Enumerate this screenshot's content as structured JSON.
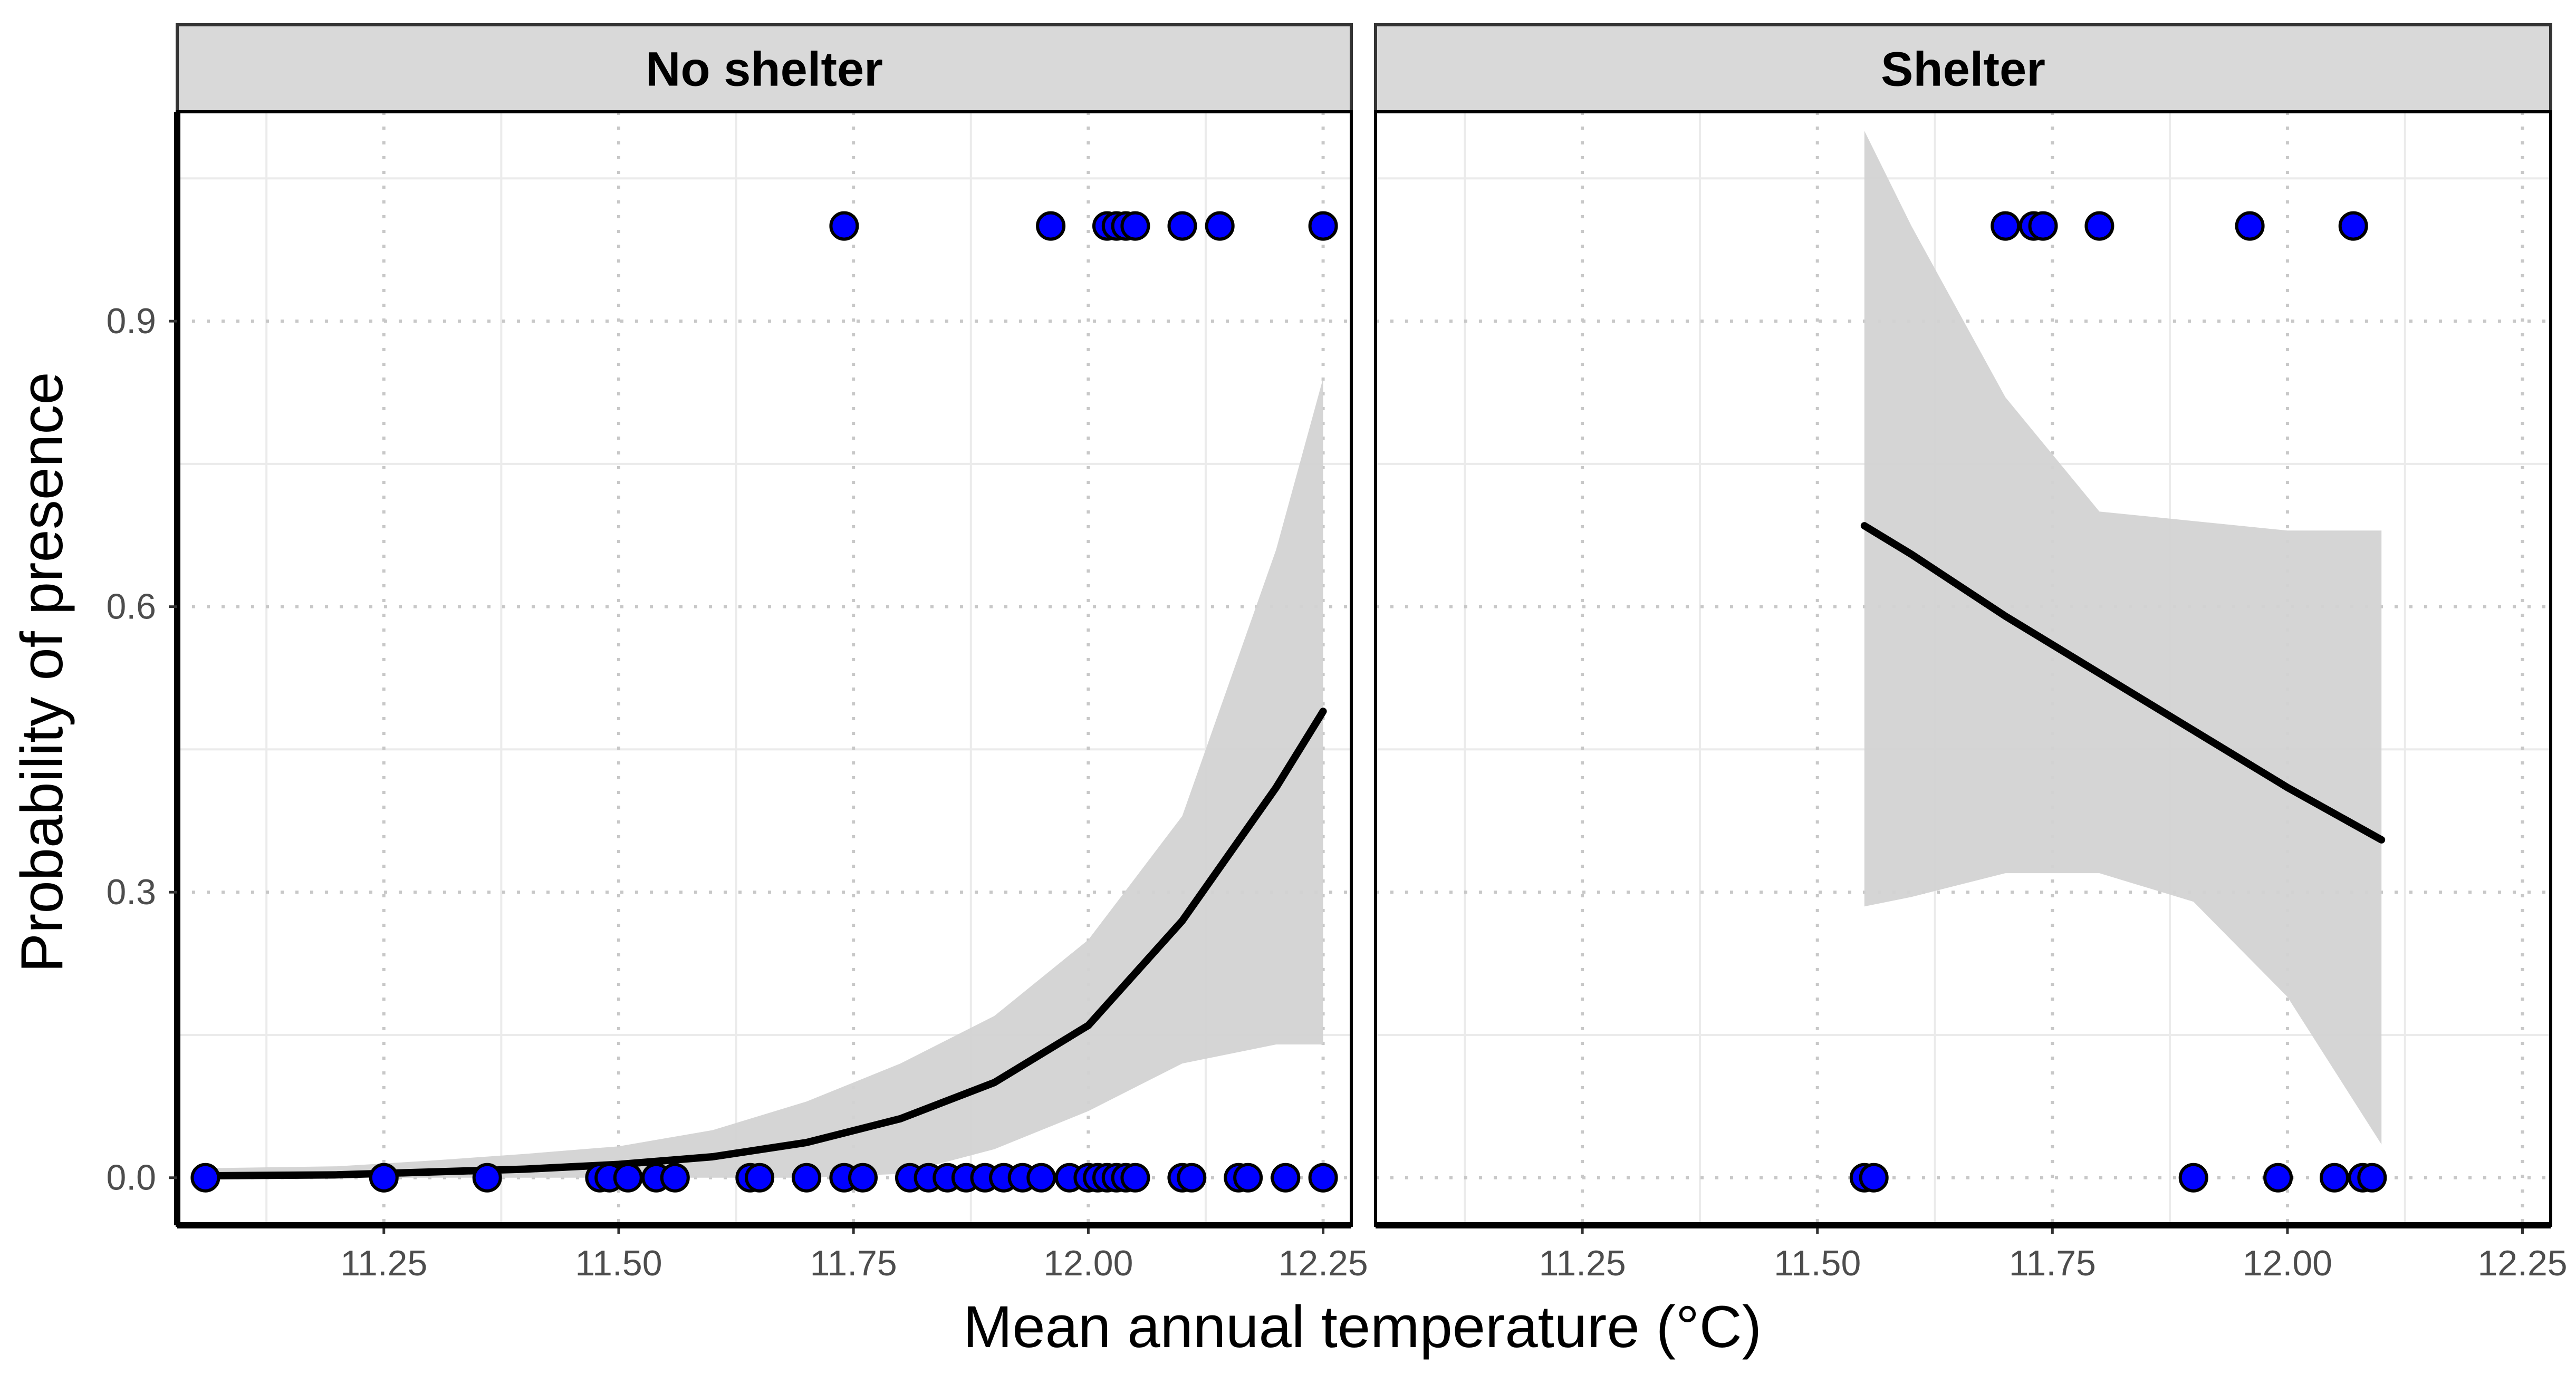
{
  "chart_data": {
    "type": "scatter",
    "xlabel": "Mean annual temperature (°C)",
    "ylabel": "Probability of presence",
    "xlim": [
      11.03,
      12.28
    ],
    "ylim": [
      -0.05,
      1.12
    ],
    "x_ticks": [
      11.25,
      11.5,
      11.75,
      12.0,
      12.25
    ],
    "x_tick_labels": [
      "11.25",
      "11.50",
      "11.75",
      "12.00",
      "12.25"
    ],
    "y_ticks": [
      0.0,
      0.3,
      0.6,
      0.9
    ],
    "y_tick_labels": [
      "0.0",
      "0.3",
      "0.6",
      "0.9"
    ],
    "colors": {
      "point": "#0000ff",
      "point_stroke": "#000000",
      "line": "#000000",
      "ribbon": "#d3d3d3",
      "strip": "#d9d9d9"
    },
    "panels": [
      {
        "title": "No shelter",
        "points": [
          {
            "x": 11.74,
            "y": 1
          },
          {
            "x": 11.96,
            "y": 1
          },
          {
            "x": 12.02,
            "y": 1
          },
          {
            "x": 12.03,
            "y": 1
          },
          {
            "x": 12.04,
            "y": 1
          },
          {
            "x": 12.05,
            "y": 1
          },
          {
            "x": 12.1,
            "y": 1
          },
          {
            "x": 12.14,
            "y": 1
          },
          {
            "x": 12.25,
            "y": 1
          },
          {
            "x": 11.06,
            "y": 0
          },
          {
            "x": 11.25,
            "y": 0
          },
          {
            "x": 11.36,
            "y": 0
          },
          {
            "x": 11.48,
            "y": 0
          },
          {
            "x": 11.49,
            "y": 0
          },
          {
            "x": 11.51,
            "y": 0
          },
          {
            "x": 11.54,
            "y": 0
          },
          {
            "x": 11.56,
            "y": 0
          },
          {
            "x": 11.64,
            "y": 0
          },
          {
            "x": 11.65,
            "y": 0
          },
          {
            "x": 11.7,
            "y": 0
          },
          {
            "x": 11.74,
            "y": 0
          },
          {
            "x": 11.76,
            "y": 0
          },
          {
            "x": 11.81,
            "y": 0
          },
          {
            "x": 11.83,
            "y": 0
          },
          {
            "x": 11.85,
            "y": 0
          },
          {
            "x": 11.87,
            "y": 0
          },
          {
            "x": 11.89,
            "y": 0
          },
          {
            "x": 11.91,
            "y": 0
          },
          {
            "x": 11.93,
            "y": 0
          },
          {
            "x": 11.95,
            "y": 0
          },
          {
            "x": 11.98,
            "y": 0
          },
          {
            "x": 12.0,
            "y": 0
          },
          {
            "x": 12.01,
            "y": 0
          },
          {
            "x": 12.02,
            "y": 0
          },
          {
            "x": 12.03,
            "y": 0
          },
          {
            "x": 12.04,
            "y": 0
          },
          {
            "x": 12.05,
            "y": 0
          },
          {
            "x": 12.1,
            "y": 0
          },
          {
            "x": 12.11,
            "y": 0
          },
          {
            "x": 12.16,
            "y": 0
          },
          {
            "x": 12.17,
            "y": 0
          },
          {
            "x": 12.21,
            "y": 0
          },
          {
            "x": 12.25,
            "y": 0
          }
        ],
        "fit": {
          "x": [
            11.06,
            11.2,
            11.3,
            11.4,
            11.5,
            11.6,
            11.7,
            11.8,
            11.9,
            12.0,
            12.1,
            12.2,
            12.25
          ],
          "y": [
            0.002,
            0.003,
            0.006,
            0.009,
            0.014,
            0.022,
            0.037,
            0.062,
            0.1,
            0.16,
            0.27,
            0.41,
            0.49
          ],
          "lower": [
            0.0,
            0.0,
            0.0,
            0.0,
            0.0,
            0.0,
            0.0,
            0.004,
            0.03,
            0.07,
            0.12,
            0.14,
            0.14
          ],
          "upper": [
            0.01,
            0.012,
            0.018,
            0.025,
            0.033,
            0.05,
            0.08,
            0.12,
            0.17,
            0.25,
            0.38,
            0.66,
            0.84
          ]
        }
      },
      {
        "title": "Shelter",
        "points": [
          {
            "x": 11.7,
            "y": 1
          },
          {
            "x": 11.73,
            "y": 1
          },
          {
            "x": 11.74,
            "y": 1
          },
          {
            "x": 11.8,
            "y": 1
          },
          {
            "x": 11.96,
            "y": 1
          },
          {
            "x": 12.07,
            "y": 1
          },
          {
            "x": 11.55,
            "y": 0
          },
          {
            "x": 11.56,
            "y": 0
          },
          {
            "x": 11.9,
            "y": 0
          },
          {
            "x": 11.99,
            "y": 0
          },
          {
            "x": 12.05,
            "y": 0
          },
          {
            "x": 12.08,
            "y": 0
          },
          {
            "x": 12.09,
            "y": 0
          }
        ],
        "fit": {
          "x": [
            11.55,
            11.6,
            11.7,
            11.8,
            11.9,
            12.0,
            12.1
          ],
          "y": [
            0.685,
            0.655,
            0.59,
            0.53,
            0.47,
            0.41,
            0.355
          ],
          "lower": [
            0.285,
            0.295,
            0.32,
            0.32,
            0.29,
            0.19,
            0.035
          ],
          "upper": [
            1.1,
            1.0,
            0.82,
            0.7,
            0.69,
            0.68,
            0.68
          ]
        }
      }
    ]
  }
}
